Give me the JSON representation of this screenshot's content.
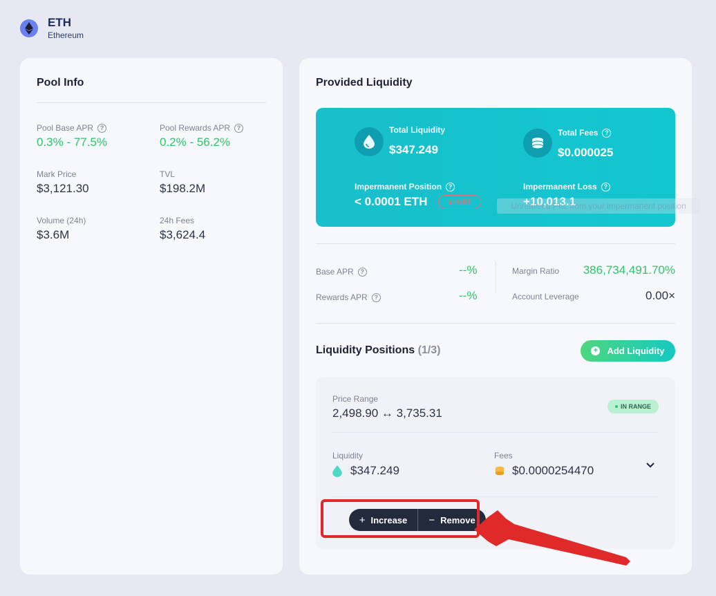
{
  "header": {
    "symbol": "ETH",
    "chain": "Ethereum",
    "icon": "ethereum-icon"
  },
  "pool_info": {
    "title": "Pool Info",
    "base_apr": {
      "label": "Pool Base APR",
      "value": "0.3% - 77.5%"
    },
    "rewards_apr": {
      "label": "Pool Rewards APR",
      "value": "0.2% - 56.2%"
    },
    "mark_price": {
      "label": "Mark Price",
      "value": "$3,121.30"
    },
    "tvl": {
      "label": "TVL",
      "value": "$198.2M"
    },
    "volume": {
      "label": "Volume (24h)",
      "value": "$3.6M"
    },
    "fees": {
      "label": "24h Fees",
      "value": "$3,624.4"
    }
  },
  "provided": {
    "title": "Provided Liquidity",
    "total_liquidity": {
      "label": "Total Liquidity",
      "value": "$347.249"
    },
    "total_fees": {
      "label": "Total Fees",
      "value": "$0.000025"
    },
    "imp_position": {
      "label": "Impermanent Position",
      "value": "< 0.0001 ETH",
      "badge": "SHORT"
    },
    "imp_loss": {
      "label": "Impermanent Loss",
      "value": "+10,013.1"
    },
    "tooltip": "Unrealized PnL from your impermanent position",
    "base_apr": {
      "label": "Base APR",
      "value": "--%"
    },
    "rewards_apr": {
      "label": "Rewards APR",
      "value": "--%"
    },
    "margin_ratio": {
      "label": "Margin Ratio",
      "value": "386,734,491.70%"
    },
    "leverage": {
      "label": "Account Leverage",
      "value": "0.00×"
    }
  },
  "positions": {
    "title": "Liquidity Positions",
    "count": "(1/3)",
    "add_label": "Add Liquidity",
    "item": {
      "range_label": "Price Range",
      "range_value": "2,498.90 ↔ 3,735.31",
      "status": "IN RANGE",
      "liquidity_label": "Liquidity",
      "liquidity_value": "$347.249",
      "fees_label": "Fees",
      "fees_value": "$0.0000254470",
      "increase_label": "Increase",
      "remove_label": "Remove"
    }
  },
  "colors": {
    "accent_teal": "#12c6cf",
    "green": "#2fc36a",
    "annotation_red": "#e02a2a"
  }
}
